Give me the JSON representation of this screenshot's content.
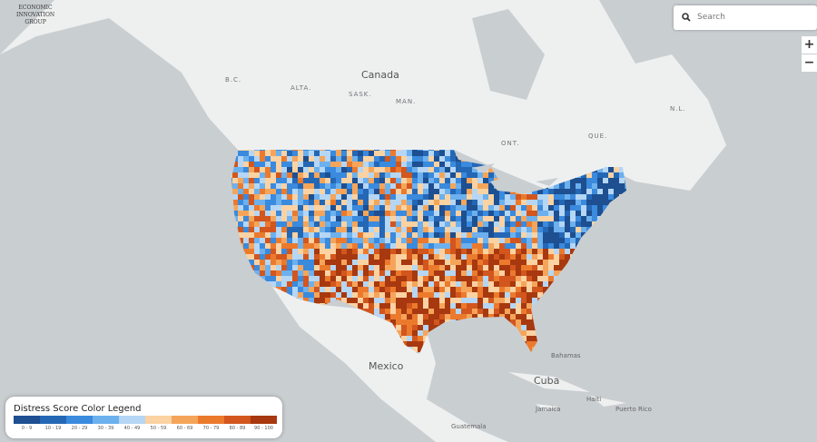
{
  "logo": {
    "lines": [
      "ECONOMIC",
      "INNOVATION",
      "GROUP"
    ]
  },
  "search": {
    "placeholder": "Search"
  },
  "zoom": {
    "in": "+",
    "out": "−"
  },
  "map_labels": {
    "canada": "Canada",
    "bc": "B.C.",
    "alta": "ALTA.",
    "sask": "SASK.",
    "man": "MAN.",
    "ont": "ONT.",
    "que": "QUE.",
    "nl": "N.L.",
    "mexico": "Mexico",
    "cuba": "Cuba",
    "bahamas": "Bahamas",
    "haiti": "Haiti",
    "jamaica": "Jamaica",
    "puerto_rico": "Puerto Rico",
    "guatemala": "Guatemala"
  },
  "legend": {
    "title": "Distress Score Color Legend",
    "items": [
      {
        "label": "0 - 9",
        "color": "#1d4f91"
      },
      {
        "label": "10 - 19",
        "color": "#2467b5"
      },
      {
        "label": "20 - 29",
        "color": "#3a8ade"
      },
      {
        "label": "30 - 39",
        "color": "#6cb0ee"
      },
      {
        "label": "40 - 49",
        "color": "#b5d6f4"
      },
      {
        "label": "50 - 59",
        "color": "#fbd2a2"
      },
      {
        "label": "60 - 69",
        "color": "#f5a55a"
      },
      {
        "label": "70 - 79",
        "color": "#ec7a2d"
      },
      {
        "label": "80 - 89",
        "color": "#d2561d"
      },
      {
        "label": "90 - 100",
        "color": "#a7380f"
      }
    ]
  }
}
